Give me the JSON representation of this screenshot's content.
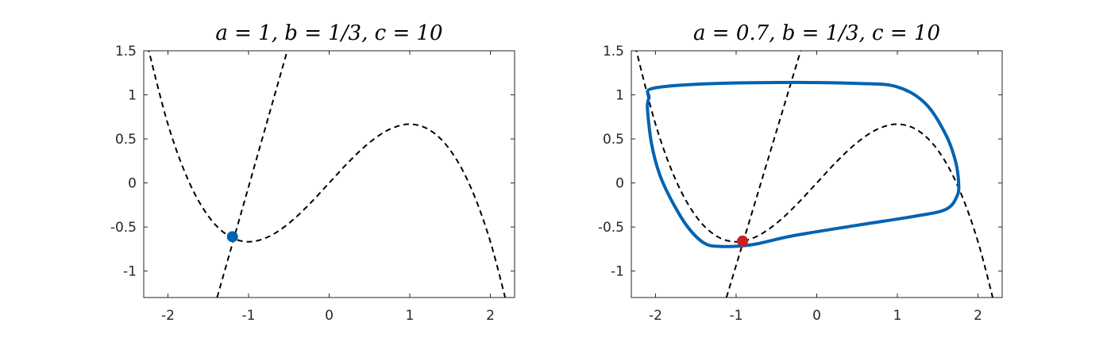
{
  "chart_data": [
    {
      "type": "line",
      "title": "a = 1, b = 1/3, c = 10",
      "xlim": [
        -2.3,
        2.3
      ],
      "ylim": [
        -1.3,
        1.5
      ],
      "x_ticks": [
        -2,
        -1,
        0,
        1,
        2
      ],
      "x_tick_labels": [
        "-2",
        "-1",
        "0",
        "1",
        "2"
      ],
      "y_ticks": [
        -1,
        -0.5,
        0,
        0.5,
        1,
        1.5
      ],
      "y_tick_labels": [
        "-1",
        "-0.5",
        "0",
        "0.5",
        "1",
        "1.5"
      ],
      "grid": false,
      "series": [
        {
          "kind": "nullcline-cubic",
          "style": "dashed",
          "color": "#000000",
          "x": [
            -2.25,
            -2.0,
            -1.75,
            -1.5,
            -1.25,
            -1.0,
            -0.75,
            -0.5,
            -0.25,
            0,
            0.25,
            0.5,
            0.75,
            1.0,
            1.25,
            1.5,
            1.75,
            2.0,
            2.25
          ],
          "y": [
            1.547,
            0.667,
            0.036,
            -0.375,
            -0.599,
            -0.667,
            -0.609,
            -0.458,
            -0.245,
            0,
            0.245,
            0.458,
            0.609,
            0.667,
            0.599,
            0.375,
            -0.036,
            -0.667,
            -1.547
          ]
        },
        {
          "kind": "nullcline-linear",
          "style": "dashed",
          "color": "#000000",
          "x": [
            -1.39,
            -0.52
          ],
          "y": [
            -1.3,
            1.5
          ]
        }
      ],
      "points": [
        {
          "kind": "equilibrium",
          "x": -1.2,
          "y": -0.61,
          "color": "#0063b2"
        }
      ]
    },
    {
      "type": "line",
      "title": "a = 0.7, b = 1/3, c = 10",
      "xlim": [
        -2.3,
        2.3
      ],
      "ylim": [
        -1.3,
        1.5
      ],
      "x_ticks": [
        -2,
        -1,
        0,
        1,
        2
      ],
      "x_tick_labels": [
        "-2",
        "-1",
        "0",
        "1",
        "2"
      ],
      "y_ticks": [
        -1,
        -0.5,
        0,
        0.5,
        1,
        1.5
      ],
      "y_tick_labels": [
        "-1",
        "-0.5",
        "0",
        "0.5",
        "1",
        "1.5"
      ],
      "grid": false,
      "series": [
        {
          "kind": "nullcline-cubic",
          "style": "dashed",
          "color": "#000000",
          "x": [
            -2.25,
            -2.0,
            -1.75,
            -1.5,
            -1.25,
            -1.0,
            -0.75,
            -0.5,
            -0.25,
            0,
            0.25,
            0.5,
            0.75,
            1.0,
            1.25,
            1.5,
            1.75,
            2.0,
            2.25
          ],
          "y": [
            1.547,
            0.667,
            0.036,
            -0.375,
            -0.599,
            -0.667,
            -0.609,
            -0.458,
            -0.245,
            0,
            0.245,
            0.458,
            0.609,
            0.667,
            0.599,
            0.375,
            -0.036,
            -0.667,
            -1.547
          ]
        },
        {
          "kind": "nullcline-linear",
          "style": "dashed",
          "color": "#000000",
          "x": [
            -1.12,
            -0.2
          ],
          "y": [
            -1.3,
            1.5
          ]
        },
        {
          "kind": "limit-cycle",
          "style": "solid",
          "color": "#0063b2",
          "x": [
            -2.08,
            -2.05,
            -1.5,
            -0.5,
            0.5,
            1.0,
            1.35,
            1.6,
            1.72,
            1.76,
            1.74,
            1.6,
            1.2,
            0.5,
            -0.3,
            -0.8,
            -1.2,
            -1.4,
            -1.6,
            -1.8,
            -1.95,
            -2.05,
            -2.1,
            -2.08
          ],
          "y": [
            0.97,
            1.07,
            1.12,
            1.14,
            1.13,
            1.09,
            0.9,
            0.55,
            0.25,
            0.0,
            -0.15,
            -0.3,
            -0.38,
            -0.48,
            -0.6,
            -0.7,
            -0.72,
            -0.68,
            -0.5,
            -0.2,
            0.1,
            0.45,
            0.85,
            0.97
          ]
        }
      ],
      "points": [
        {
          "kind": "equilibrium",
          "x": -0.92,
          "y": -0.66,
          "color": "#cc1f1f"
        }
      ]
    }
  ]
}
